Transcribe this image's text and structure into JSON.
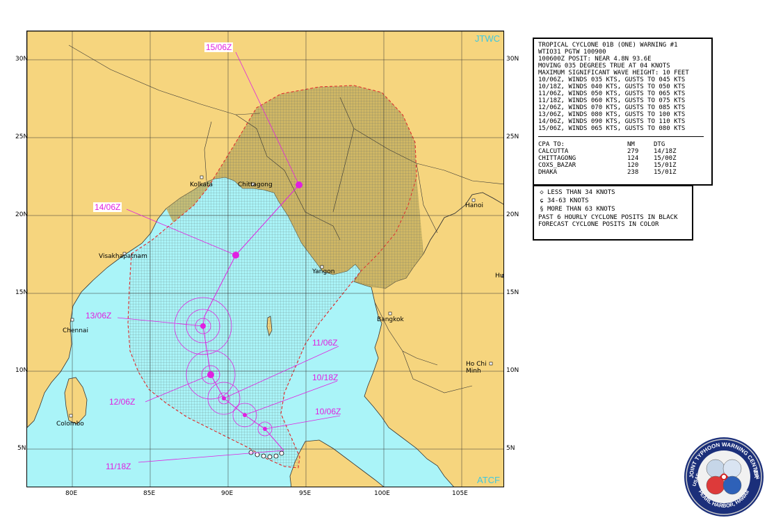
{
  "map": {
    "agency_label": "JTWC",
    "source_label": "ATCF",
    "lon_ticks": [
      "80E",
      "85E",
      "90E",
      "95E",
      "100E",
      "105E"
    ],
    "lat_ticks": [
      "30N",
      "25N",
      "20N",
      "15N",
      "10N",
      "5N"
    ],
    "cities": [
      {
        "name": "Kolkata"
      },
      {
        "name": "Chittagong"
      },
      {
        "name": "Hanoi"
      },
      {
        "name": "Visakhapatnam"
      },
      {
        "name": "Yangon"
      },
      {
        "name": "Hue"
      },
      {
        "name": "Chennai"
      },
      {
        "name": "Bangkok"
      },
      {
        "name": "Ho Chi Minh"
      },
      {
        "name": "Colombo"
      }
    ],
    "forecast_labels": [
      {
        "label": "15/06Z"
      },
      {
        "label": "14/06Z"
      },
      {
        "label": "13/06Z"
      },
      {
        "label": "12/06Z"
      },
      {
        "label": "11/06Z"
      },
      {
        "label": "10/18Z"
      },
      {
        "label": "10/06Z"
      },
      {
        "label": "11/18Z"
      }
    ],
    "colors": {
      "sea": "#aaf4f8",
      "land": "#f6d57e",
      "danger_land": "#c8b260",
      "track": "#e020e0",
      "danger_border": "#e03030"
    }
  },
  "warning": {
    "lines": [
      "TROPICAL CYCLONE 01B (ONE) WARNING #1",
      "WTIO31 PGTW 100900",
      "100600Z POSIT: NEAR 4.8N 93.6E",
      "MOVING 035 DEGREES TRUE AT 04 KNOTS",
      "MAXIMUM SIGNIFICANT WAVE HEIGHT: 10 FEET",
      "10/06Z, WINDS 035 KTS, GUSTS TO 045 KTS",
      "10/18Z, WINDS 040 KTS, GUSTS TO 050 KTS",
      "11/06Z, WINDS 050 KTS, GUSTS TO 065 KTS",
      "11/18Z, WINDS 060 KTS, GUSTS TO 075 KTS",
      "12/06Z, WINDS 070 KTS, GUSTS TO 085 KTS",
      "13/06Z, WINDS 080 KTS, GUSTS TO 100 KTS",
      "14/06Z, WINDS 090 KTS, GUSTS TO 110 KTS",
      "15/06Z, WINDS 065 KTS, GUSTS TO 080 KTS"
    ],
    "cpa_header": [
      "CPA TO:",
      "NM",
      "DTG"
    ],
    "cpa_rows": [
      [
        "CALCUTTA",
        "279",
        "14/18Z"
      ],
      [
        "CHITTAGONG",
        "124",
        "15/00Z"
      ],
      [
        "COXS_BAZAR",
        "120",
        "15/01Z"
      ],
      [
        "DHAKA",
        "238",
        "15/01Z"
      ]
    ]
  },
  "legend": {
    "items": [
      {
        "symbol": "◇",
        "text": "LESS THAN 34 KNOTS"
      },
      {
        "symbol": "ɕ",
        "text": "34-63 KNOTS"
      },
      {
        "symbol": "§",
        "text": "MORE THAN 63 KNOTS"
      }
    ],
    "notes": [
      "PAST 6 HOURLY CYCLONE POSITS IN BLACK",
      "FORECAST CYCLONE POSITS IN COLOR"
    ]
  },
  "seal": {
    "text_top": "JOINT TYPHOON WARNING CENTER",
    "text_bottom": "PEARL HARBOR, HAWAII",
    "text_left": "USAF",
    "text_right": "USN"
  }
}
